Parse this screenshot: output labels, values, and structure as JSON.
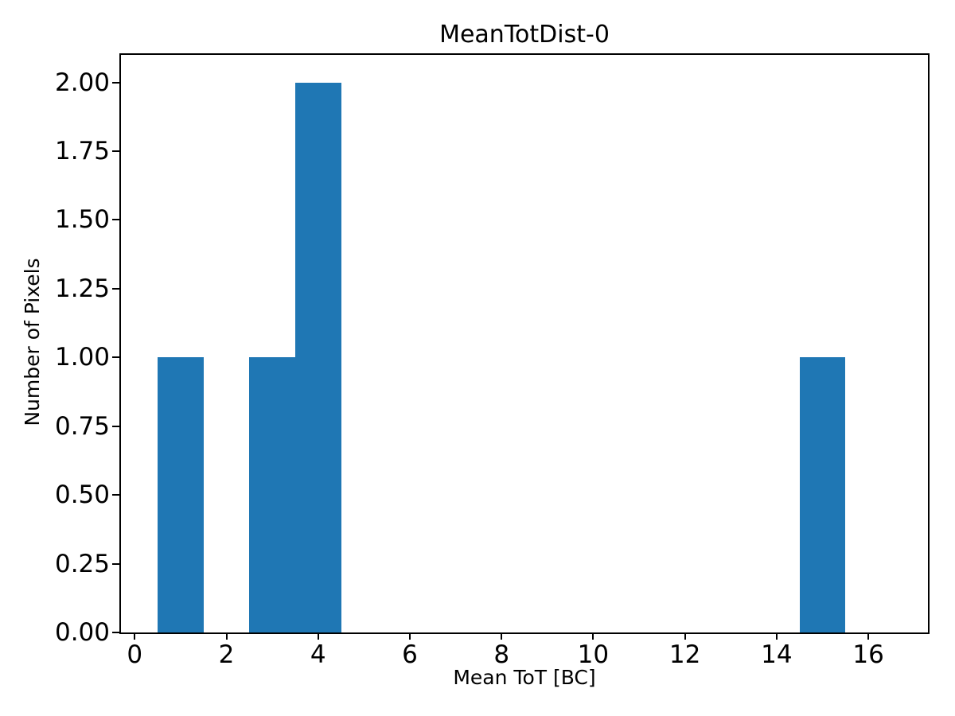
{
  "chart_data": {
    "type": "bar",
    "subtype": "histogram",
    "title": "MeanTotDist-0",
    "xlabel": "Mean ToT [BC]",
    "ylabel": "Number of Pixels",
    "bar_color": "#1f77b4",
    "axes_color": "#000000",
    "background_color": "#ffffff",
    "grid": false,
    "legend": null,
    "xlim": [
      -0.3,
      17.3
    ],
    "ylim": [
      0,
      2.1
    ],
    "bin_width": 1,
    "bars": [
      {
        "x_start": 0.5,
        "x_end": 1.5,
        "count": 1
      },
      {
        "x_start": 2.5,
        "x_end": 3.5,
        "count": 1
      },
      {
        "x_start": 3.5,
        "x_end": 4.5,
        "count": 2
      },
      {
        "x_start": 14.5,
        "x_end": 15.5,
        "count": 1
      }
    ],
    "xticks": [
      {
        "value": 0,
        "label": "0"
      },
      {
        "value": 2,
        "label": "2"
      },
      {
        "value": 4,
        "label": "4"
      },
      {
        "value": 6,
        "label": "6"
      },
      {
        "value": 8,
        "label": "8"
      },
      {
        "value": 10,
        "label": "10"
      },
      {
        "value": 12,
        "label": "12"
      },
      {
        "value": 14,
        "label": "14"
      },
      {
        "value": 16,
        "label": "16"
      }
    ],
    "yticks": [
      {
        "value": 0.0,
        "label": "0.00"
      },
      {
        "value": 0.25,
        "label": "0.25"
      },
      {
        "value": 0.5,
        "label": "0.50"
      },
      {
        "value": 0.75,
        "label": "0.75"
      },
      {
        "value": 1.0,
        "label": "1.00"
      },
      {
        "value": 1.25,
        "label": "1.25"
      },
      {
        "value": 1.5,
        "label": "1.50"
      },
      {
        "value": 1.75,
        "label": "1.75"
      },
      {
        "value": 2.0,
        "label": "2.00"
      }
    ]
  }
}
